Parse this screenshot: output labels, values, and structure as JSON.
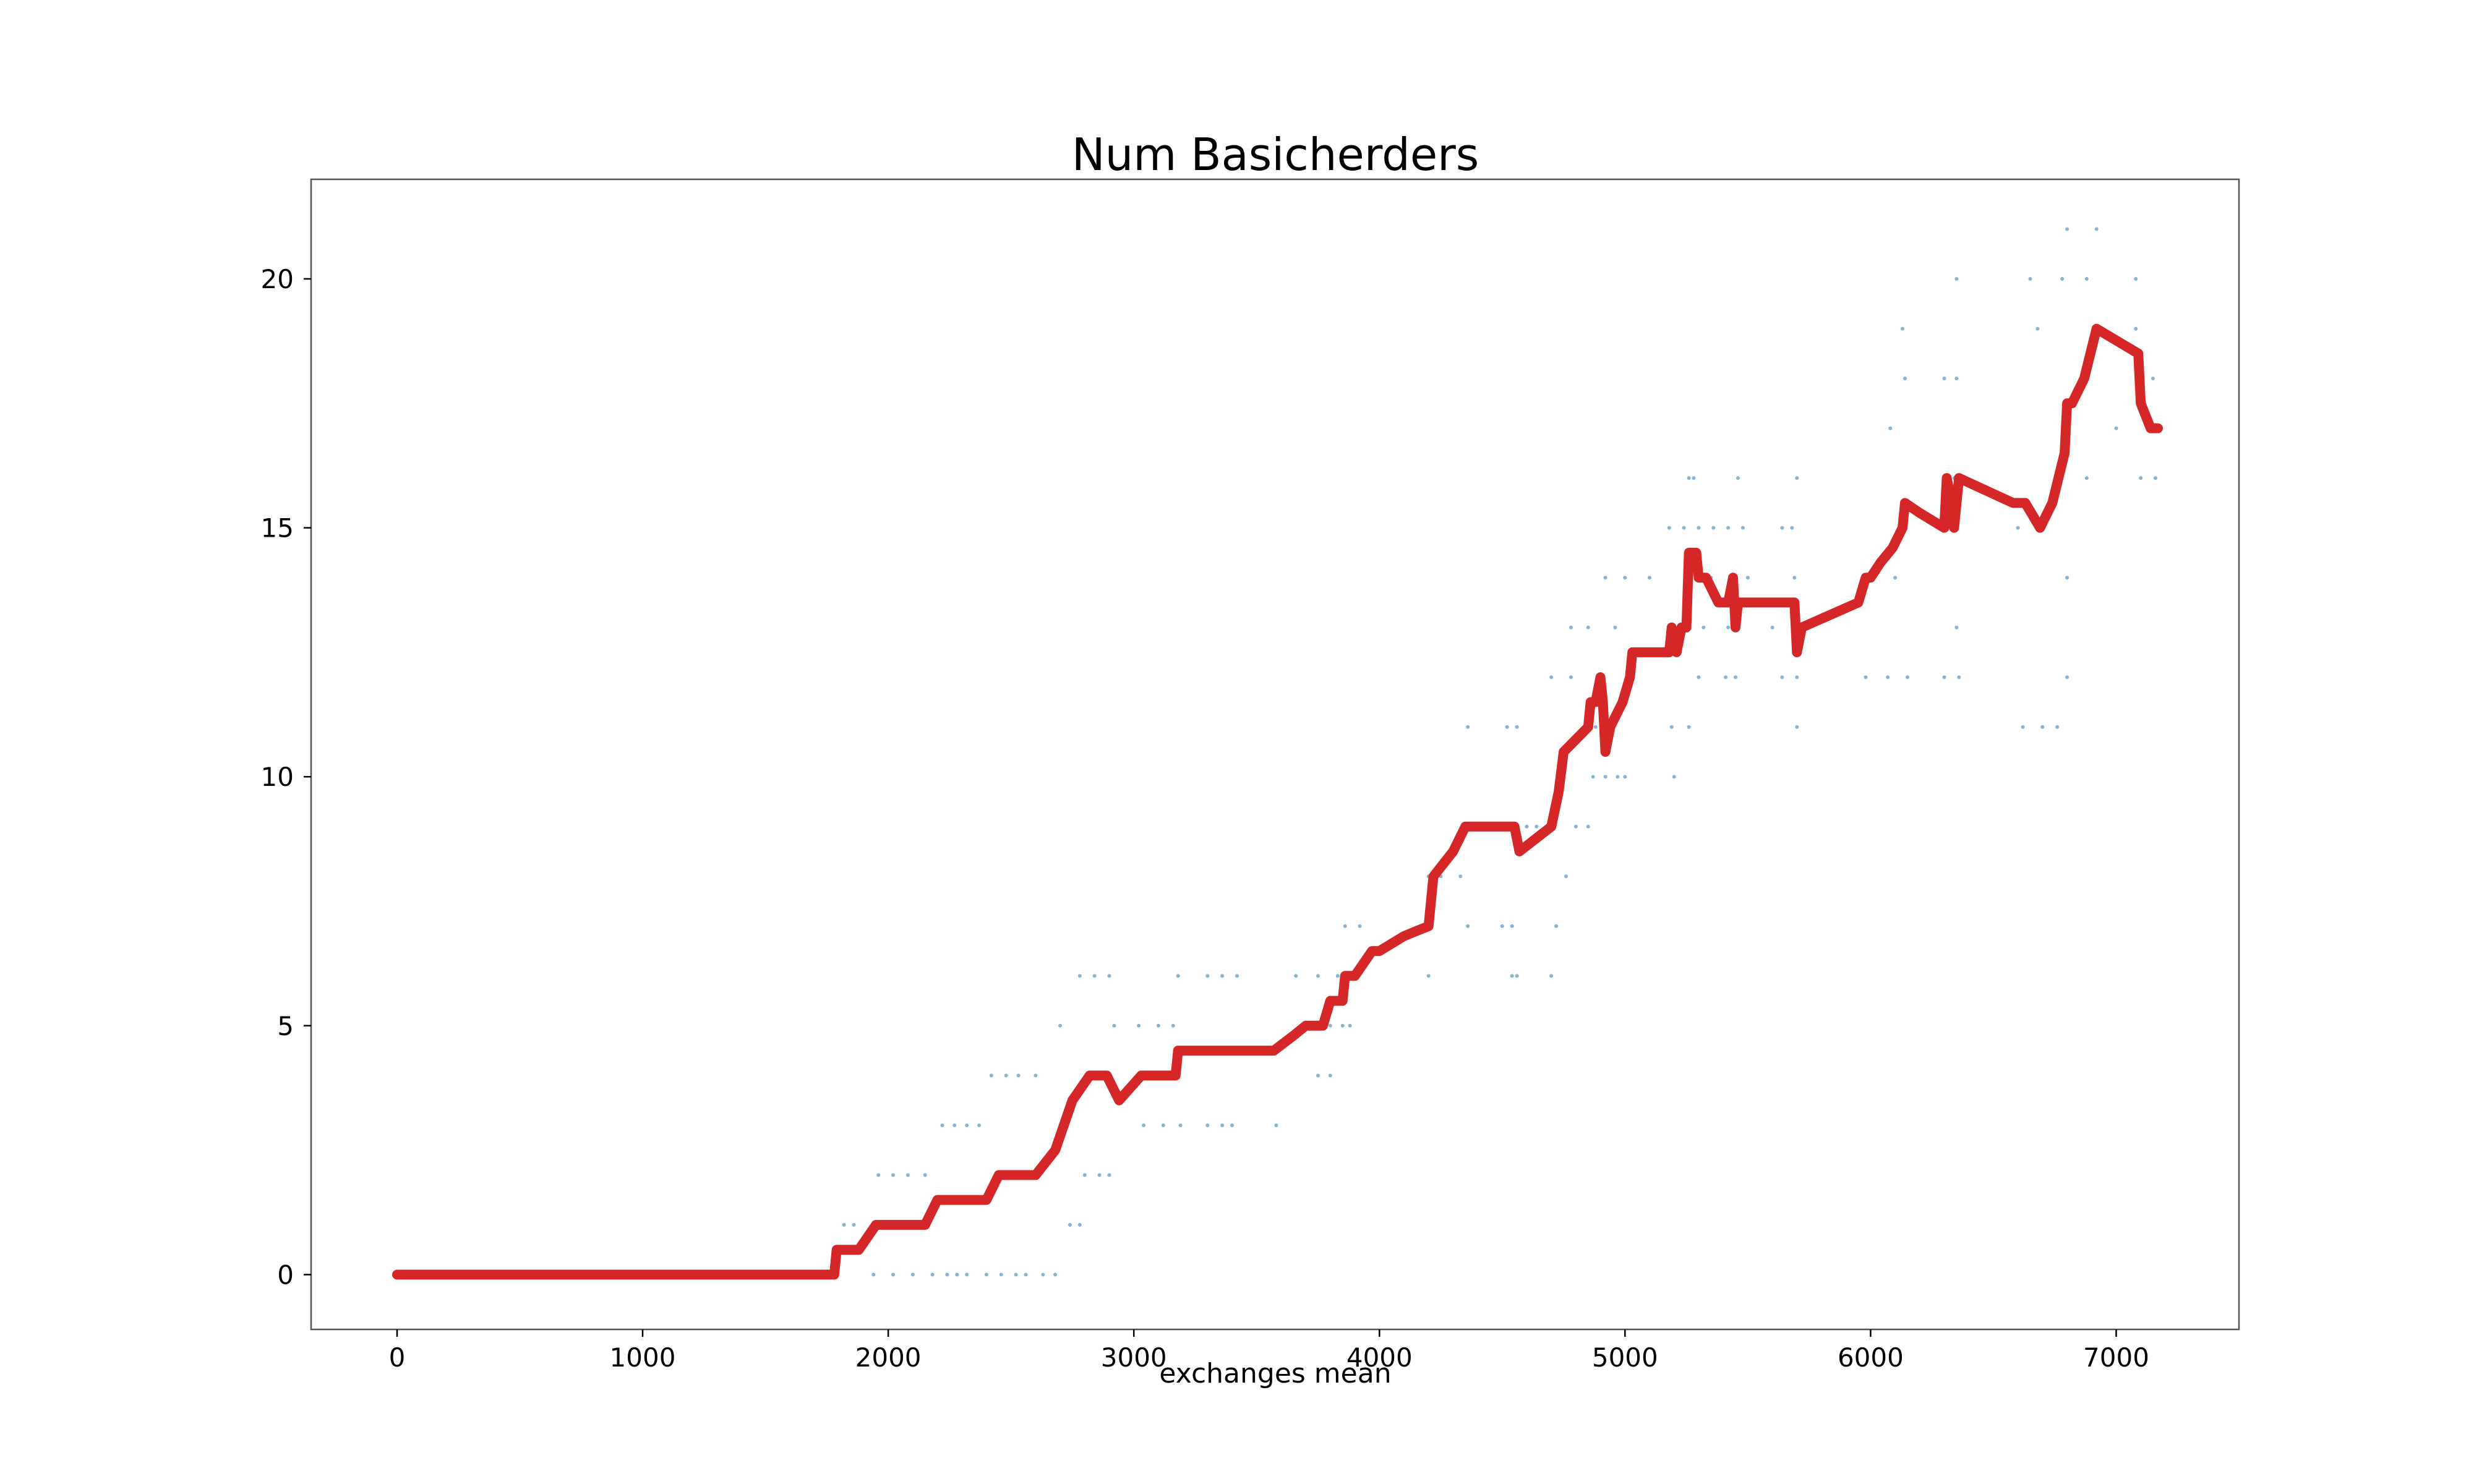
{
  "chart_data": {
    "type": "line",
    "title": "Num Basicherders",
    "xlabel": "exchanges mean",
    "ylabel": "",
    "xlim": [
      -350,
      7500
    ],
    "ylim": [
      -1.1,
      22
    ],
    "xticks": [
      0,
      1000,
      2000,
      3000,
      4000,
      5000,
      6000,
      7000
    ],
    "yticks": [
      0,
      5,
      10,
      15,
      20
    ],
    "grid": false,
    "legend": "none",
    "colors": {
      "line": "#d62728",
      "scatter": "#1f77b4",
      "frame": "#555555"
    },
    "series": [
      {
        "kind": "line",
        "x": [
          0,
          200,
          400,
          600,
          800,
          1000,
          1200,
          1400,
          1600,
          1770,
          1780,
          1790,
          1880,
          1950,
          2000,
          2150,
          2200,
          2250,
          2400,
          2450,
          2500,
          2600,
          2680,
          2750,
          2820,
          2890,
          2940,
          3030,
          3170,
          3180,
          3300,
          3400,
          3500,
          3570,
          3650,
          3700,
          3770,
          3800,
          3850,
          3860,
          3900,
          3970,
          4000,
          4100,
          4200,
          4210,
          4220,
          4300,
          4350,
          4450,
          4550,
          4570,
          4700,
          4730,
          4750,
          4850,
          4860,
          4880,
          4900,
          4910,
          4920,
          4940,
          4990,
          5020,
          5030,
          5060,
          5080,
          5180,
          5190,
          5210,
          5230,
          5250,
          5260,
          5290,
          5300,
          5330,
          5380,
          5420,
          5440,
          5450,
          5460,
          5480,
          5600,
          5690,
          5700,
          5720,
          5950,
          5980,
          6000,
          6040,
          6090,
          6130,
          6140,
          6200,
          6300,
          6310,
          6330,
          6340,
          6360,
          6580,
          6630,
          6690,
          6740,
          6790,
          6800,
          6820,
          6870,
          6920,
          7090,
          7100,
          7140,
          7170
        ],
        "y": [
          0,
          0,
          0,
          0,
          0,
          0,
          0,
          0,
          0,
          0,
          0,
          0.5,
          0.5,
          1,
          1,
          1,
          1.5,
          1.5,
          1.5,
          2,
          2,
          2,
          2.5,
          3.5,
          4,
          4,
          3.5,
          4,
          4,
          4.5,
          4.5,
          4.5,
          4.5,
          4.5,
          4.8,
          5,
          5,
          5.5,
          5.5,
          6,
          6,
          6.5,
          6.5,
          6.8,
          7,
          7.5,
          8,
          8.5,
          9,
          9,
          9,
          8.5,
          9,
          9.7,
          10.5,
          11,
          11.5,
          11.5,
          12,
          11.5,
          10.5,
          11,
          11.5,
          12,
          12.5,
          12.5,
          12.5,
          12.5,
          13,
          12.5,
          13,
          13,
          14.5,
          14.5,
          14,
          14,
          13.5,
          13.5,
          14,
          13,
          13.5,
          13.5,
          13.5,
          13.5,
          12.5,
          13,
          13.5,
          14,
          14,
          14.3,
          14.6,
          15,
          15.5,
          15.3,
          15,
          16,
          15.5,
          15,
          16,
          15.5,
          15.5,
          15,
          15.5,
          16.5,
          17.5,
          17.5,
          18,
          19,
          18.5,
          17.5,
          17,
          17
        ]
      },
      {
        "kind": "scatter",
        "points": [
          [
            1820,
            1
          ],
          [
            1860,
            1
          ],
          [
            1940,
            0
          ],
          [
            2020,
            0
          ],
          [
            2100,
            0
          ],
          [
            2180,
            0
          ],
          [
            2240,
            0
          ],
          [
            2280,
            0
          ],
          [
            2320,
            0
          ],
          [
            2400,
            0
          ],
          [
            2460,
            0
          ],
          [
            2520,
            0
          ],
          [
            2560,
            0
          ],
          [
            2630,
            0
          ],
          [
            2680,
            0
          ],
          [
            1960,
            2
          ],
          [
            2020,
            2
          ],
          [
            2080,
            2
          ],
          [
            2150,
            2
          ],
          [
            2800,
            2
          ],
          [
            2860,
            2
          ],
          [
            2900,
            2
          ],
          [
            2220,
            3
          ],
          [
            2270,
            3
          ],
          [
            2320,
            3
          ],
          [
            2370,
            3
          ],
          [
            3040,
            3
          ],
          [
            3120,
            3
          ],
          [
            3190,
            3
          ],
          [
            3300,
            3
          ],
          [
            3360,
            3
          ],
          [
            3400,
            3
          ],
          [
            3580,
            3
          ],
          [
            2420,
            4
          ],
          [
            2480,
            4
          ],
          [
            2530,
            4
          ],
          [
            2600,
            4
          ],
          [
            3750,
            4
          ],
          [
            3800,
            4
          ],
          [
            2740,
            1
          ],
          [
            2780,
            1
          ],
          [
            2700,
            5
          ],
          [
            2920,
            5
          ],
          [
            3020,
            5
          ],
          [
            3100,
            5
          ],
          [
            3160,
            5
          ],
          [
            3800,
            5
          ],
          [
            3850,
            5
          ],
          [
            3880,
            5
          ],
          [
            2780,
            6
          ],
          [
            2840,
            6
          ],
          [
            2900,
            6
          ],
          [
            3180,
            6
          ],
          [
            3300,
            6
          ],
          [
            3360,
            6
          ],
          [
            3420,
            6
          ],
          [
            3660,
            6
          ],
          [
            3750,
            6
          ],
          [
            3830,
            6
          ],
          [
            4200,
            6
          ],
          [
            4540,
            6
          ],
          [
            4560,
            6
          ],
          [
            4700,
            6
          ],
          [
            3860,
            7
          ],
          [
            3920,
            7
          ],
          [
            4360,
            7
          ],
          [
            4500,
            7
          ],
          [
            4540,
            7
          ],
          [
            4720,
            7
          ],
          [
            4200,
            8
          ],
          [
            4250,
            8
          ],
          [
            4330,
            8
          ],
          [
            4760,
            8
          ],
          [
            4600,
            9
          ],
          [
            4640,
            9
          ],
          [
            4800,
            9
          ],
          [
            4850,
            9
          ],
          [
            4360,
            11
          ],
          [
            4520,
            11
          ],
          [
            4560,
            11
          ],
          [
            4880,
            11
          ],
          [
            5190,
            11
          ],
          [
            5260,
            11
          ],
          [
            5700,
            11
          ],
          [
            6620,
            11
          ],
          [
            6700,
            11
          ],
          [
            6760,
            11
          ],
          [
            4870,
            10
          ],
          [
            4920,
            10
          ],
          [
            4970,
            10
          ],
          [
            5000,
            10
          ],
          [
            5200,
            10
          ],
          [
            4700,
            12
          ],
          [
            4780,
            12
          ],
          [
            5010,
            12
          ],
          [
            5300,
            12
          ],
          [
            5410,
            12
          ],
          [
            5450,
            12
          ],
          [
            5640,
            12
          ],
          [
            5700,
            12
          ],
          [
            5980,
            12
          ],
          [
            6070,
            12
          ],
          [
            6150,
            12
          ],
          [
            6300,
            12
          ],
          [
            6360,
            12
          ],
          [
            6800,
            12
          ],
          [
            4780,
            13
          ],
          [
            4850,
            13
          ],
          [
            4960,
            13
          ],
          [
            5220,
            13
          ],
          [
            5320,
            13
          ],
          [
            5420,
            13
          ],
          [
            5600,
            13
          ],
          [
            5720,
            13
          ],
          [
            6350,
            13
          ],
          [
            4920,
            14
          ],
          [
            5000,
            14
          ],
          [
            5100,
            14
          ],
          [
            5350,
            14
          ],
          [
            5500,
            14
          ],
          [
            5690,
            14
          ],
          [
            6100,
            14
          ],
          [
            6800,
            14
          ],
          [
            5180,
            15
          ],
          [
            5240,
            15
          ],
          [
            5300,
            15
          ],
          [
            5360,
            15
          ],
          [
            5420,
            15
          ],
          [
            5480,
            15
          ],
          [
            5640,
            15
          ],
          [
            5680,
            15
          ],
          [
            6600,
            15
          ],
          [
            5260,
            16
          ],
          [
            5280,
            16
          ],
          [
            5460,
            16
          ],
          [
            5700,
            16
          ],
          [
            6340,
            16
          ],
          [
            6880,
            16
          ],
          [
            7100,
            16
          ],
          [
            7160,
            16
          ],
          [
            6080,
            17
          ],
          [
            7000,
            17
          ],
          [
            6140,
            18
          ],
          [
            6300,
            18
          ],
          [
            6350,
            18
          ],
          [
            7150,
            18
          ],
          [
            6130,
            19
          ],
          [
            6680,
            19
          ],
          [
            7080,
            19
          ],
          [
            6350,
            20
          ],
          [
            6650,
            20
          ],
          [
            6780,
            20
          ],
          [
            6880,
            20
          ],
          [
            7080,
            20
          ],
          [
            6800,
            21
          ],
          [
            6920,
            21
          ]
        ]
      }
    ]
  }
}
